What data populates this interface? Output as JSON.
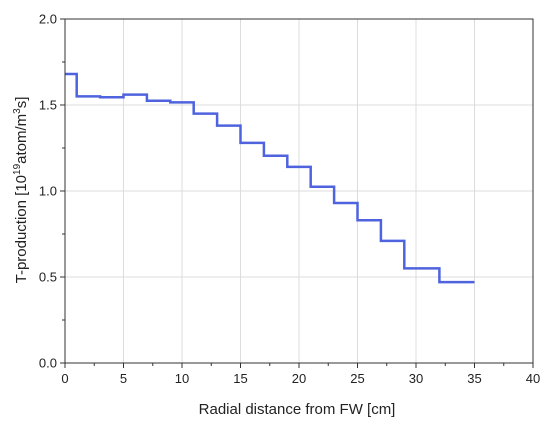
{
  "chart_data": {
    "type": "line",
    "step": true,
    "xlabel": "Radial distance from FW [cm]",
    "ylabel": {
      "prefix": "T-production [10",
      "exp1": "19",
      "mid": "atom/m",
      "exp2": "3",
      "suffix": "s]"
    },
    "xlim": [
      0,
      40
    ],
    "ylim": [
      0.0,
      2.0
    ],
    "x_ticks": [
      0,
      5,
      10,
      15,
      20,
      25,
      30,
      35,
      40
    ],
    "x_tick_labels": [
      "0",
      "5",
      "10",
      "15",
      "20",
      "25",
      "30",
      "35",
      "40"
    ],
    "y_ticks": [
      0.0,
      0.5,
      1.0,
      1.5,
      2.0
    ],
    "y_tick_labels": [
      "0.0",
      "0.5",
      "1.0",
      "1.5",
      "2.0"
    ],
    "grid": true,
    "series": [
      {
        "color": "#4f63de",
        "bins": [
          {
            "x0": 0,
            "x1": 1,
            "y": 1.68
          },
          {
            "x0": 1,
            "x1": 3,
            "y": 1.55
          },
          {
            "x0": 3,
            "x1": 5,
            "y": 1.545
          },
          {
            "x0": 5,
            "x1": 7,
            "y": 1.56
          },
          {
            "x0": 7,
            "x1": 9,
            "y": 1.525
          },
          {
            "x0": 9,
            "x1": 11,
            "y": 1.515
          },
          {
            "x0": 11,
            "x1": 13,
            "y": 1.45
          },
          {
            "x0": 13,
            "x1": 15,
            "y": 1.38
          },
          {
            "x0": 15,
            "x1": 17,
            "y": 1.28
          },
          {
            "x0": 17,
            "x1": 19,
            "y": 1.205
          },
          {
            "x0": 19,
            "x1": 21,
            "y": 1.14
          },
          {
            "x0": 21,
            "x1": 23,
            "y": 1.025
          },
          {
            "x0": 23,
            "x1": 25,
            "y": 0.93
          },
          {
            "x0": 25,
            "x1": 27,
            "y": 0.83
          },
          {
            "x0": 27,
            "x1": 29,
            "y": 0.71
          },
          {
            "x0": 29,
            "x1": 32,
            "y": 0.55
          },
          {
            "x0": 32,
            "x1": 35,
            "y": 0.47
          }
        ]
      }
    ]
  }
}
